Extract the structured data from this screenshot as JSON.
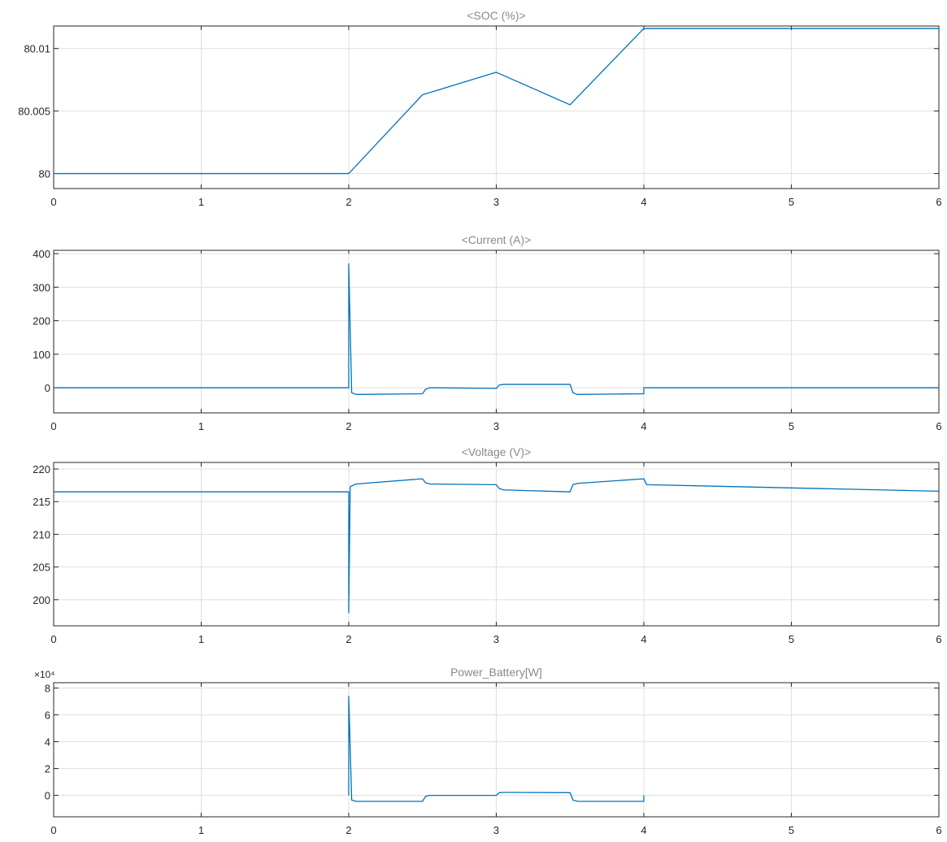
{
  "chart_data": [
    {
      "type": "line",
      "title": "<SOC (%)>",
      "xlim": [
        0,
        6
      ],
      "ylim": [
        79.9988,
        80.0118
      ],
      "grid": true,
      "x_ticks": [
        0,
        1,
        2,
        3,
        4,
        5,
        6
      ],
      "x_tick_labels": [
        "0",
        "1",
        "2",
        "3",
        "4",
        "5",
        "6"
      ],
      "y_ticks": [
        80,
        80.005,
        80.01
      ],
      "y_tick_labels": [
        "80",
        "80.005",
        "80.01"
      ],
      "y_exponent": "",
      "series": [
        {
          "color": "#0072bd",
          "x": [
            0,
            2,
            2.5,
            3,
            3.5,
            4,
            6
          ],
          "y": [
            80.0,
            80.0,
            80.0063,
            80.0081,
            80.0055,
            80.0116,
            80.0116
          ]
        }
      ]
    },
    {
      "type": "line",
      "title": "<Current (A)>",
      "xlim": [
        0,
        6
      ],
      "ylim": [
        -75,
        410
      ],
      "grid": true,
      "x_ticks": [
        0,
        1,
        2,
        3,
        4,
        5,
        6
      ],
      "x_tick_labels": [
        "0",
        "1",
        "2",
        "3",
        "4",
        "5",
        "6"
      ],
      "y_ticks": [
        0,
        100,
        200,
        300,
        400
      ],
      "y_tick_labels": [
        "0",
        "100",
        "200",
        "300",
        "400"
      ],
      "y_exponent": "",
      "series": [
        {
          "color": "#0072bd",
          "x": [
            0,
            2,
            2,
            2.02,
            2.05,
            2.5,
            2.52,
            2.55,
            3,
            3.02,
            3.05,
            3.5,
            3.52,
            3.55,
            4,
            4,
            6
          ],
          "y": [
            0,
            0,
            370,
            -15,
            -20,
            -18,
            -5,
            0,
            -2,
            8,
            10,
            10,
            -15,
            -20,
            -18,
            0,
            0
          ]
        }
      ]
    },
    {
      "type": "line",
      "title": "<Voltage (V)>",
      "xlim": [
        0,
        6
      ],
      "ylim": [
        196,
        221
      ],
      "grid": true,
      "x_ticks": [
        0,
        1,
        2,
        3,
        4,
        5,
        6
      ],
      "x_tick_labels": [
        "0",
        "1",
        "2",
        "3",
        "4",
        "5",
        "6"
      ],
      "y_ticks": [
        200,
        205,
        210,
        215,
        220
      ],
      "y_tick_labels": [
        "200",
        "205",
        "210",
        "215",
        "220"
      ],
      "y_exponent": "",
      "series": [
        {
          "color": "#0072bd",
          "x": [
            0,
            2,
            2,
            2.01,
            2.05,
            2.5,
            2.52,
            2.55,
            3,
            3.02,
            3.05,
            3.5,
            3.52,
            3.55,
            4,
            4.02,
            6
          ],
          "y": [
            216.5,
            216.5,
            198,
            217.3,
            217.7,
            218.5,
            217.9,
            217.7,
            217.6,
            217.0,
            216.8,
            216.5,
            217.6,
            217.8,
            218.5,
            217.6,
            216.6
          ]
        }
      ]
    },
    {
      "type": "line",
      "title": "Power_Battery[W]",
      "xlim": [
        0,
        6
      ],
      "ylim": [
        -16000,
        84000
      ],
      "grid": true,
      "x_ticks": [
        0,
        1,
        2,
        3,
        4,
        5,
        6
      ],
      "x_tick_labels": [
        "0",
        "1",
        "2",
        "3",
        "4",
        "5",
        "6"
      ],
      "y_ticks": [
        0,
        20000,
        40000,
        60000,
        80000
      ],
      "y_tick_labels": [
        "0",
        "2",
        "4",
        "6",
        "8"
      ],
      "y_exponent": "×10⁴",
      "series": [
        {
          "color": "#0072bd",
          "x": [
            2,
            2,
            2.02,
            2.05,
            2.5,
            2.52,
            2.55,
            3,
            3.02,
            3.05,
            3.5,
            3.52,
            3.55,
            4,
            4
          ],
          "y": [
            0,
            74000,
            -3500,
            -4500,
            -4500,
            -800,
            0,
            0,
            2000,
            2200,
            2000,
            -3500,
            -4500,
            -4500,
            0
          ]
        }
      ]
    }
  ]
}
